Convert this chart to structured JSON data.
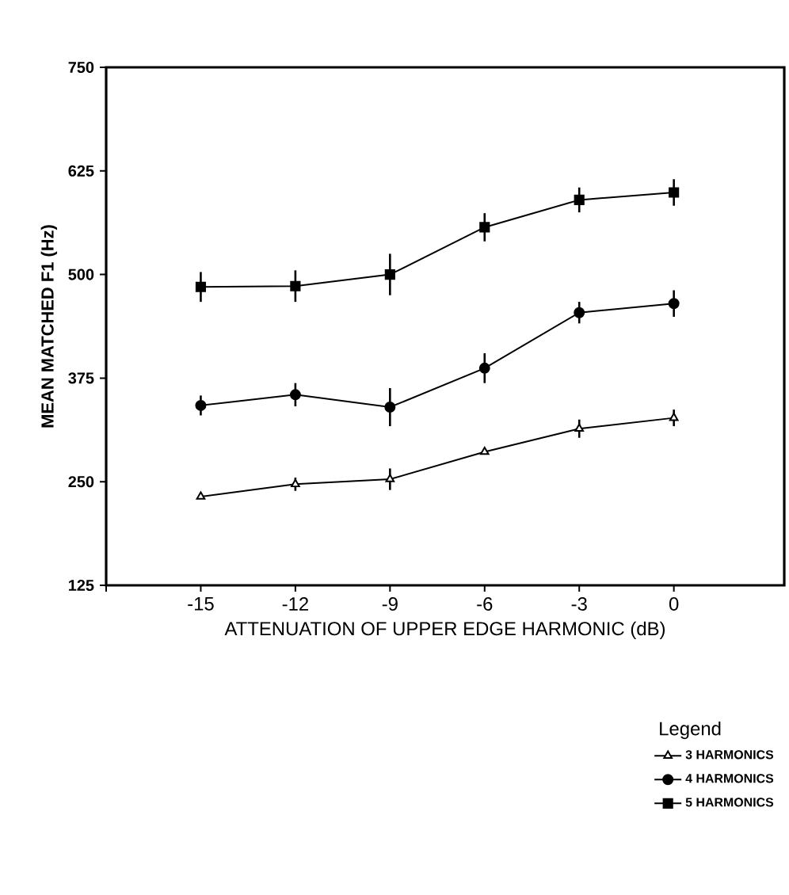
{
  "chart_data": {
    "type": "line",
    "xlabel": "ATTENUATION OF UPPER EDGE HARMONIC (dB)",
    "ylabel": "MEAN MATCHED F1  (Hz)",
    "legend_title": "Legend",
    "x": [
      -15,
      -12,
      -9,
      -6,
      -3,
      0
    ],
    "series": [
      {
        "name": "3 HARMONICS",
        "color": "#000000",
        "marker": "triangle",
        "values": [
          232,
          247,
          253,
          286,
          314,
          327
        ],
        "errors": [
          null,
          8,
          13,
          null,
          11,
          10
        ]
      },
      {
        "name": "4 HARMONICS",
        "color": "#000000",
        "marker": "circle",
        "values": [
          342,
          355,
          340,
          387,
          454,
          465
        ],
        "errors": [
          12,
          14,
          23,
          18,
          13,
          16
        ]
      },
      {
        "name": "5 HARMONICS",
        "color": "#000000",
        "marker": "square",
        "values": [
          485,
          486,
          500,
          557,
          590,
          599
        ],
        "errors": [
          18,
          19,
          25,
          17,
          15,
          16
        ]
      }
    ],
    "xlim": [
      -18,
      3.5
    ],
    "xticks": [
      {
        "value": -18,
        "label": null
      },
      -15,
      -12,
      -9,
      -6,
      -3,
      0
    ],
    "ylim": [
      125,
      750
    ],
    "yticks": [
      125,
      250,
      375,
      500,
      625,
      750
    ],
    "grid": false,
    "legend": "bottom right",
    "line_style": "solid"
  }
}
